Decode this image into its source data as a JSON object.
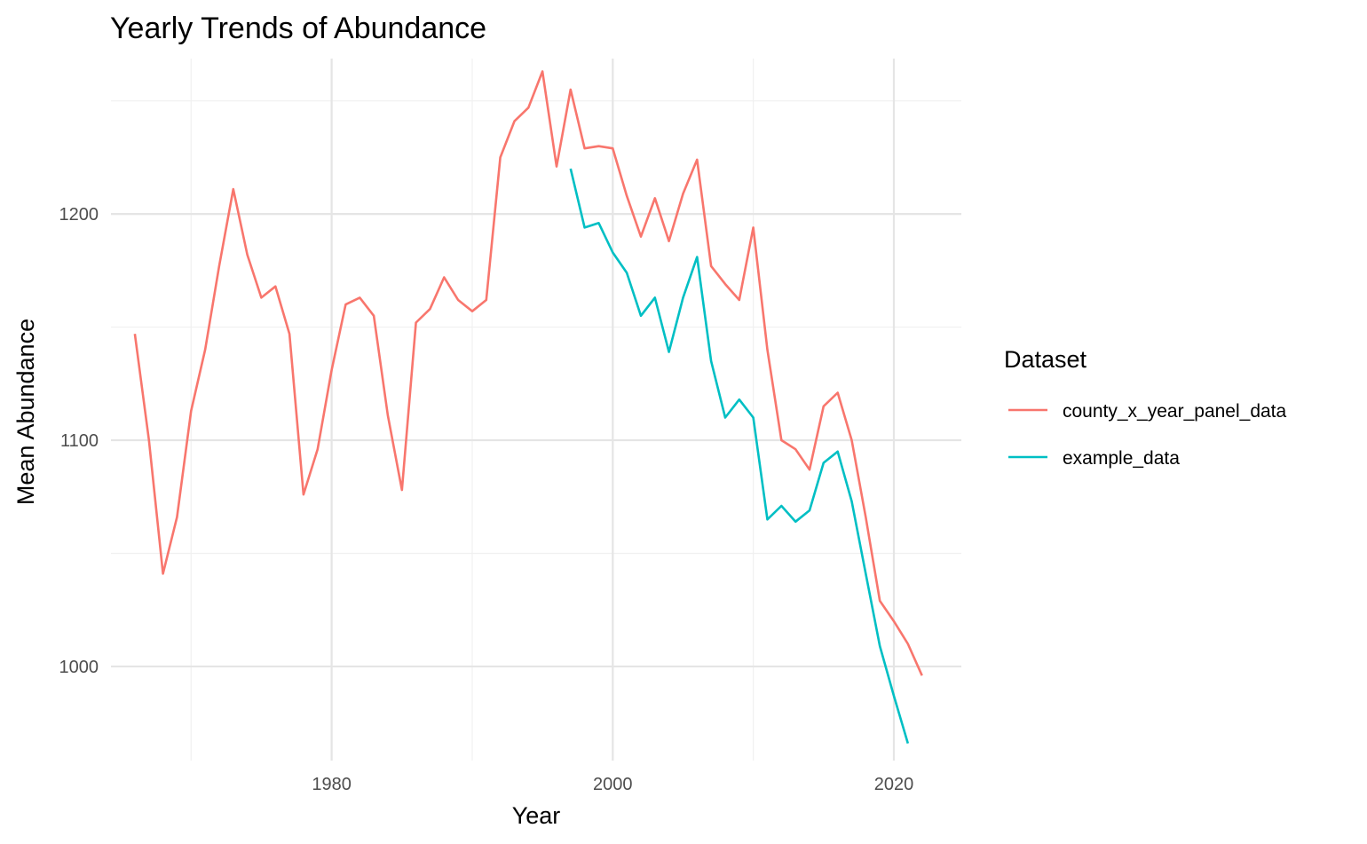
{
  "chart_data": {
    "type": "line",
    "title": "Yearly Trends of Abundance",
    "xlabel": "Year",
    "ylabel": "Mean Abundance",
    "xlim": [
      1964.3,
      2024.8
    ],
    "ylim": [
      958.4,
      1268.7
    ],
    "x_ticks": [
      1980,
      2000,
      2020
    ],
    "x_minor": [
      1970,
      1990,
      2010
    ],
    "y_ticks": [
      1000,
      1100,
      1200
    ],
    "y_minor": [
      1050,
      1150,
      1250
    ],
    "grid": true,
    "legend": {
      "title": "Dataset",
      "position": "right"
    },
    "series": [
      {
        "name": "county_x_year_panel_data",
        "color": "#f8766d",
        "x": [
          1966,
          1967,
          1968,
          1969,
          1970,
          1971,
          1972,
          1973,
          1974,
          1975,
          1976,
          1977,
          1978,
          1979,
          1980,
          1981,
          1982,
          1983,
          1984,
          1985,
          1986,
          1987,
          1988,
          1989,
          1990,
          1991,
          1992,
          1993,
          1994,
          1995,
          1996,
          1997,
          1998,
          1999,
          2000,
          2001,
          2002,
          2003,
          2004,
          2005,
          2006,
          2007,
          2008,
          2009,
          2010,
          2011,
          2012,
          2013,
          2014,
          2015,
          2016,
          2017,
          2018,
          2019,
          2020,
          2021,
          2022
        ],
        "values": [
          1147,
          1100,
          1041,
          1066,
          1113,
          1140,
          1177,
          1211,
          1182,
          1163,
          1168,
          1147,
          1076,
          1096,
          1131,
          1160,
          1163,
          1155,
          1111,
          1078,
          1152,
          1158,
          1172,
          1162,
          1157,
          1162,
          1225,
          1241,
          1247,
          1263,
          1221,
          1255,
          1229,
          1230,
          1229,
          1208,
          1190,
          1207,
          1188,
          1209,
          1224,
          1177,
          1169,
          1162,
          1194,
          1140,
          1100,
          1096,
          1087,
          1115,
          1121,
          1100,
          1066,
          1029,
          1020,
          1010,
          996
        ]
      },
      {
        "name": "example_data",
        "color": "#00bfc4",
        "x": [
          1997,
          1998,
          1999,
          2000,
          2001,
          2002,
          2003,
          2004,
          2005,
          2006,
          2007,
          2008,
          2009,
          2010,
          2011,
          2012,
          2013,
          2014,
          2015,
          2016,
          2017,
          2018,
          2019,
          2020,
          2021
        ],
        "values": [
          1220,
          1194,
          1196,
          1183,
          1174,
          1155,
          1163,
          1139,
          1163,
          1181,
          1135,
          1110,
          1118,
          1110,
          1065,
          1071,
          1064,
          1069,
          1090,
          1095,
          1073,
          1041,
          1009,
          987,
          966
        ]
      }
    ]
  }
}
